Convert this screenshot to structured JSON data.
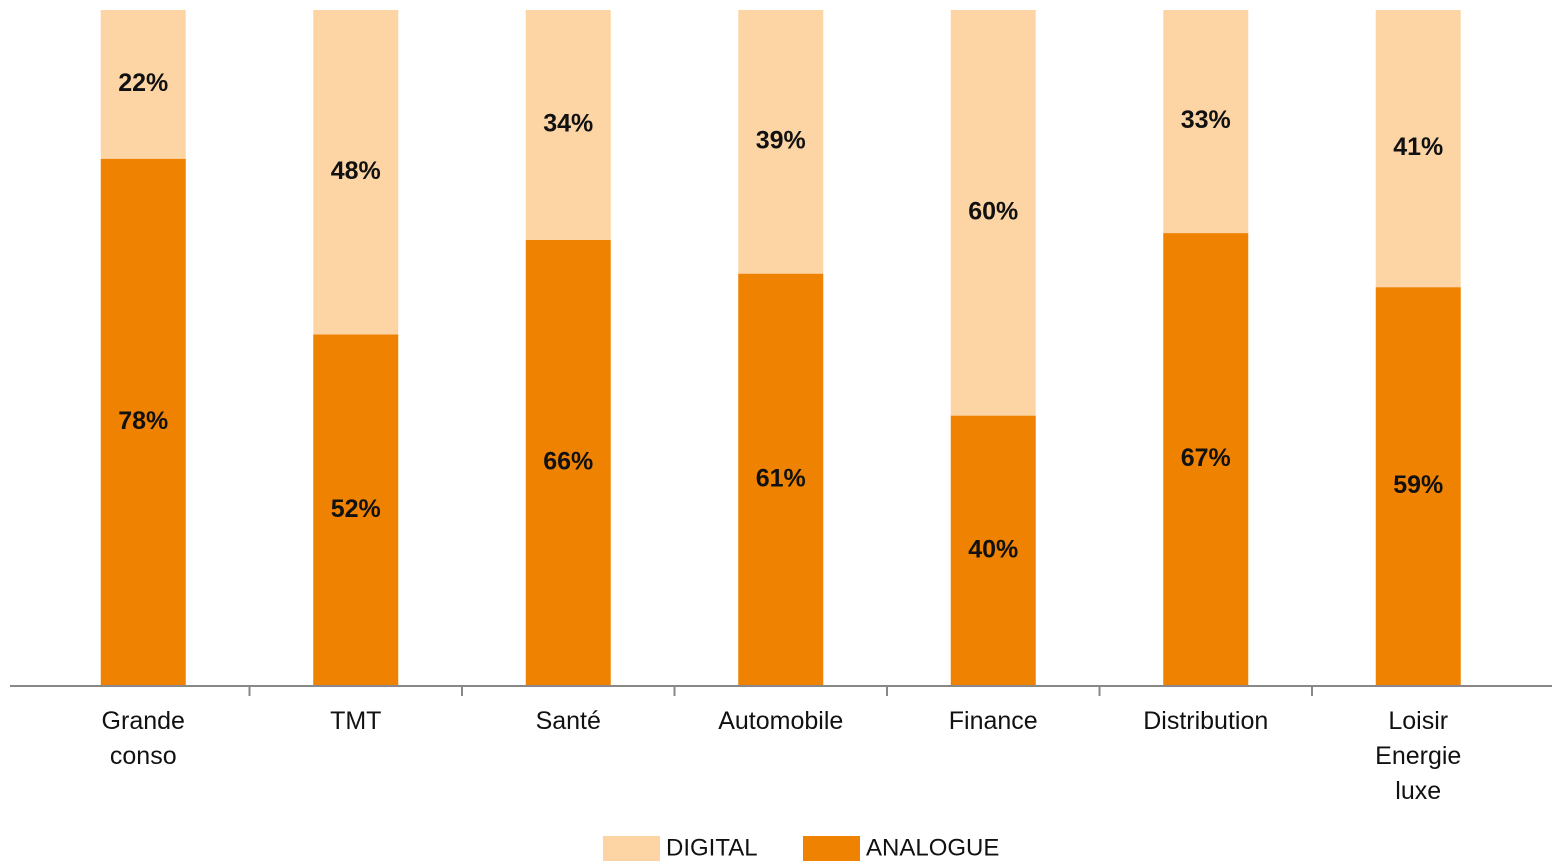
{
  "chart_data": {
    "type": "stacked_bar",
    "categories": [
      "Grande conso",
      "TMT",
      "Santé",
      "Automobile",
      "Finance",
      "Distribution",
      "Loisir Energie luxe"
    ],
    "series": [
      {
        "name": "ANALOGUE",
        "color": "#ef8200",
        "values": [
          78,
          52,
          66,
          61,
          40,
          67,
          59
        ],
        "value_labels": [
          "78%",
          "52%",
          "66%",
          "61%",
          "40%",
          "67%",
          "59%"
        ]
      },
      {
        "name": "DIGITAL",
        "color": "#fdd5a5",
        "values": [
          22,
          48,
          34,
          39,
          60,
          33,
          41
        ],
        "value_labels": [
          "22%",
          "48%",
          "34%",
          "39%",
          "60%",
          "33%",
          "41%"
        ]
      }
    ],
    "ylim": [
      0,
      100
    ],
    "legend": "bottom"
  }
}
